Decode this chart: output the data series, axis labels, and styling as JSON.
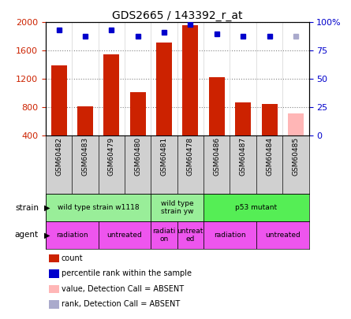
{
  "title": "GDS2665 / 143392_r_at",
  "samples": [
    "GSM60482",
    "GSM60483",
    "GSM60479",
    "GSM60480",
    "GSM60481",
    "GSM60478",
    "GSM60486",
    "GSM60487",
    "GSM60484",
    "GSM60485"
  ],
  "counts": [
    1390,
    810,
    1545,
    1010,
    1720,
    1960,
    1230,
    870,
    850,
    710
  ],
  "percentile_ranks": [
    93,
    88,
    93,
    88,
    91,
    98,
    90,
    88,
    88,
    88
  ],
  "absent": [
    false,
    false,
    false,
    false,
    false,
    false,
    false,
    false,
    false,
    true
  ],
  "ylim_left": [
    400,
    2000
  ],
  "ylim_right": [
    0,
    100
  ],
  "yticks_left": [
    400,
    800,
    1200,
    1600,
    2000
  ],
  "yticks_right": [
    0,
    25,
    50,
    75,
    100
  ],
  "bar_color": "#cc2200",
  "absent_bar_color": "#ffb6b6",
  "dot_color": "#0000cc",
  "absent_dot_color": "#aaaacc",
  "xlabels_bg": "#d0d0d0",
  "strain_groups": [
    {
      "label": "wild type strain w1118",
      "start": 0,
      "end": 4,
      "color": "#99ee99"
    },
    {
      "label": "wild type\nstrain yw",
      "start": 4,
      "end": 6,
      "color": "#99ee99"
    },
    {
      "label": "p53 mutant",
      "start": 6,
      "end": 10,
      "color": "#55ee55"
    }
  ],
  "agent_groups": [
    {
      "label": "radiation",
      "start": 0,
      "end": 2,
      "color": "#ee55ee"
    },
    {
      "label": "untreated",
      "start": 2,
      "end": 4,
      "color": "#ee55ee"
    },
    {
      "label": "radiati\non",
      "start": 4,
      "end": 5,
      "color": "#ee55ee"
    },
    {
      "label": "untreat\ned",
      "start": 5,
      "end": 6,
      "color": "#ee55ee"
    },
    {
      "label": "radiation",
      "start": 6,
      "end": 8,
      "color": "#ee55ee"
    },
    {
      "label": "untreated",
      "start": 8,
      "end": 10,
      "color": "#ee55ee"
    }
  ],
  "legend_items": [
    {
      "label": "count",
      "color": "#cc2200"
    },
    {
      "label": "percentile rank within the sample",
      "color": "#0000cc"
    },
    {
      "label": "value, Detection Call = ABSENT",
      "color": "#ffb6b6"
    },
    {
      "label": "rank, Detection Call = ABSENT",
      "color": "#aaaacc"
    }
  ],
  "left_color": "#cc2200",
  "right_color": "#0000cc",
  "fig_width": 4.45,
  "fig_height": 4.05,
  "dpi": 100
}
